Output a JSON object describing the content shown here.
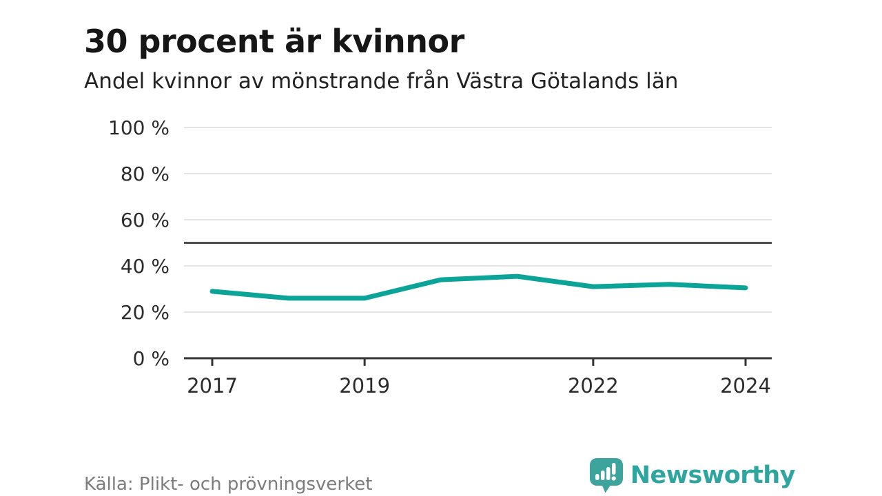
{
  "header": {
    "title": "30 procent är kvinnor",
    "subtitle": "Andel kvinnor av mönstrande från Västra Götalands län"
  },
  "chart_data": {
    "type": "line",
    "series_name": "Andel kvinnor av mönstrande",
    "x": [
      2017,
      2018,
      2019,
      2020,
      2021,
      2022,
      2023,
      2024
    ],
    "values": [
      29,
      26,
      26,
      34,
      35.5,
      31,
      32,
      30.5
    ],
    "ylim": [
      0,
      100
    ],
    "y_ticks": [
      0,
      20,
      40,
      60,
      80,
      100
    ],
    "y_tick_suffix": " %",
    "x_ticks": [
      2017,
      2019,
      2022,
      2024
    ],
    "reference_line": 50,
    "grid": true,
    "legend": "none",
    "line_color": "#0ca499",
    "reference_color": "#4d4d4d",
    "grid_color": "#e4e4e4",
    "axis_color": "#333333",
    "tick_label_color": "#2b2b2b"
  },
  "footer": {
    "source": "Källa: Plikt- och prövningsverket",
    "brand": "Newsworthy",
    "brand_color": "#2ea59e"
  }
}
